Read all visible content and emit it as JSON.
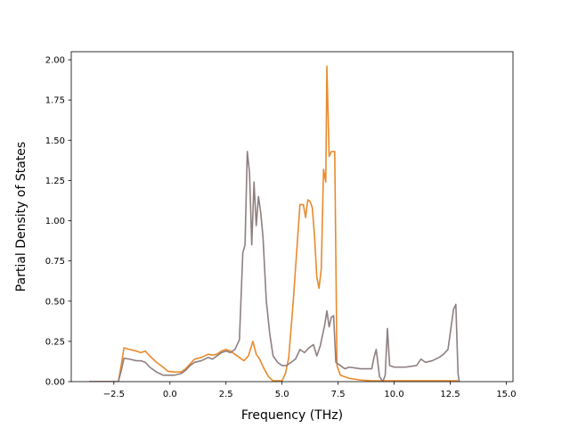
{
  "chart_data": {
    "type": "line",
    "title": "",
    "xlabel": "Frequency (THz)",
    "ylabel": "Partial Density of States",
    "xlim": [
      -4.4,
      15.3
    ],
    "ylim": [
      0.0,
      2.05
    ],
    "xticks": [
      -2.5,
      0.0,
      2.5,
      5.0,
      7.5,
      10.0,
      12.5,
      15.0
    ],
    "xtick_labels": [
      "−2.5",
      "0.0",
      "2.5",
      "5.0",
      "7.5",
      "10.0",
      "12.5",
      "15.0"
    ],
    "yticks": [
      0.0,
      0.25,
      0.5,
      0.75,
      1.0,
      1.25,
      1.5,
      1.75,
      2.0
    ],
    "ytick_labels": [
      "0.00",
      "0.25",
      "0.50",
      "0.75",
      "1.00",
      "1.25",
      "1.50",
      "1.75",
      "2.00"
    ],
    "grid": false,
    "series": [
      {
        "color": "#e98a2c",
        "points": [
          [
            -3.6,
            0
          ],
          [
            -2.3,
            0
          ],
          [
            -2.15,
            0.12
          ],
          [
            -2.05,
            0.21
          ],
          [
            -1.8,
            0.2
          ],
          [
            -1.5,
            0.19
          ],
          [
            -1.3,
            0.18
          ],
          [
            -1.1,
            0.19
          ],
          [
            -0.9,
            0.16
          ],
          [
            -0.6,
            0.12
          ],
          [
            -0.3,
            0.09
          ],
          [
            -0.1,
            0.065
          ],
          [
            0.2,
            0.06
          ],
          [
            0.5,
            0.06
          ],
          [
            0.7,
            0.08
          ],
          [
            0.9,
            0.11
          ],
          [
            1.1,
            0.14
          ],
          [
            1.4,
            0.15
          ],
          [
            1.7,
            0.17
          ],
          [
            1.9,
            0.165
          ],
          [
            2.1,
            0.17
          ],
          [
            2.3,
            0.19
          ],
          [
            2.5,
            0.2
          ],
          [
            2.7,
            0.19
          ],
          [
            2.9,
            0.17
          ],
          [
            3.1,
            0.15
          ],
          [
            3.3,
            0.13
          ],
          [
            3.5,
            0.16
          ],
          [
            3.7,
            0.25
          ],
          [
            3.85,
            0.17
          ],
          [
            4.0,
            0.14
          ],
          [
            4.2,
            0.08
          ],
          [
            4.4,
            0.03
          ],
          [
            4.6,
            0.005
          ],
          [
            5.0,
            0.005
          ],
          [
            5.15,
            0.05
          ],
          [
            5.3,
            0.15
          ],
          [
            5.5,
            0.5
          ],
          [
            5.7,
            0.9
          ],
          [
            5.8,
            1.1
          ],
          [
            5.95,
            1.1
          ],
          [
            6.05,
            1.02
          ],
          [
            6.15,
            1.13
          ],
          [
            6.25,
            1.12
          ],
          [
            6.35,
            1.08
          ],
          [
            6.45,
            0.9
          ],
          [
            6.55,
            0.65
          ],
          [
            6.65,
            0.58
          ],
          [
            6.75,
            0.7
          ],
          [
            6.85,
            1.32
          ],
          [
            6.95,
            1.24
          ],
          [
            7.0,
            1.96
          ],
          [
            7.1,
            1.4
          ],
          [
            7.2,
            1.43
          ],
          [
            7.35,
            1.43
          ],
          [
            7.45,
            0.1
          ],
          [
            7.6,
            0.04
          ],
          [
            8.0,
            0.02
          ],
          [
            8.5,
            0.01
          ],
          [
            9.0,
            0.005
          ],
          [
            12.8,
            0.005
          ],
          [
            12.9,
            0
          ]
        ]
      },
      {
        "color": "#8f7f80",
        "points": [
          [
            -3.6,
            0
          ],
          [
            -2.3,
            0
          ],
          [
            -2.15,
            0.08
          ],
          [
            -2.05,
            0.145
          ],
          [
            -1.8,
            0.14
          ],
          [
            -1.5,
            0.13
          ],
          [
            -1.3,
            0.13
          ],
          [
            -1.1,
            0.12
          ],
          [
            -0.9,
            0.09
          ],
          [
            -0.6,
            0.06
          ],
          [
            -0.3,
            0.04
          ],
          [
            -0.1,
            0.04
          ],
          [
            0.2,
            0.04
          ],
          [
            0.5,
            0.05
          ],
          [
            0.7,
            0.07
          ],
          [
            0.9,
            0.1
          ],
          [
            1.1,
            0.12
          ],
          [
            1.4,
            0.13
          ],
          [
            1.7,
            0.15
          ],
          [
            1.9,
            0.14
          ],
          [
            2.1,
            0.16
          ],
          [
            2.3,
            0.18
          ],
          [
            2.5,
            0.19
          ],
          [
            2.7,
            0.18
          ],
          [
            2.9,
            0.2
          ],
          [
            3.1,
            0.26
          ],
          [
            3.25,
            0.8
          ],
          [
            3.35,
            0.85
          ],
          [
            3.45,
            1.43
          ],
          [
            3.55,
            1.3
          ],
          [
            3.65,
            0.85
          ],
          [
            3.75,
            1.24
          ],
          [
            3.85,
            0.97
          ],
          [
            3.95,
            1.15
          ],
          [
            4.05,
            1.05
          ],
          [
            4.15,
            0.9
          ],
          [
            4.3,
            0.5
          ],
          [
            4.45,
            0.3
          ],
          [
            4.6,
            0.16
          ],
          [
            4.8,
            0.12
          ],
          [
            5.0,
            0.1
          ],
          [
            5.2,
            0.1
          ],
          [
            5.4,
            0.12
          ],
          [
            5.6,
            0.14
          ],
          [
            5.8,
            0.2
          ],
          [
            6.0,
            0.18
          ],
          [
            6.2,
            0.21
          ],
          [
            6.4,
            0.23
          ],
          [
            6.55,
            0.16
          ],
          [
            6.7,
            0.22
          ],
          [
            6.9,
            0.35
          ],
          [
            7.0,
            0.44
          ],
          [
            7.1,
            0.34
          ],
          [
            7.2,
            0.4
          ],
          [
            7.3,
            0.41
          ],
          [
            7.4,
            0.12
          ],
          [
            7.6,
            0.1
          ],
          [
            7.8,
            0.08
          ],
          [
            8.0,
            0.09
          ],
          [
            8.5,
            0.08
          ],
          [
            9.0,
            0.08
          ],
          [
            9.1,
            0.15
          ],
          [
            9.2,
            0.2
          ],
          [
            9.35,
            0.03
          ],
          [
            9.5,
            0.0
          ],
          [
            9.6,
            0.04
          ],
          [
            9.7,
            0.33
          ],
          [
            9.8,
            0.1
          ],
          [
            10.0,
            0.09
          ],
          [
            10.5,
            0.09
          ],
          [
            11.0,
            0.1
          ],
          [
            11.2,
            0.14
          ],
          [
            11.4,
            0.12
          ],
          [
            11.7,
            0.13
          ],
          [
            12.0,
            0.15
          ],
          [
            12.2,
            0.17
          ],
          [
            12.4,
            0.2
          ],
          [
            12.5,
            0.3
          ],
          [
            12.65,
            0.45
          ],
          [
            12.75,
            0.48
          ],
          [
            12.85,
            0.05
          ],
          [
            12.9,
            0
          ]
        ]
      }
    ]
  }
}
